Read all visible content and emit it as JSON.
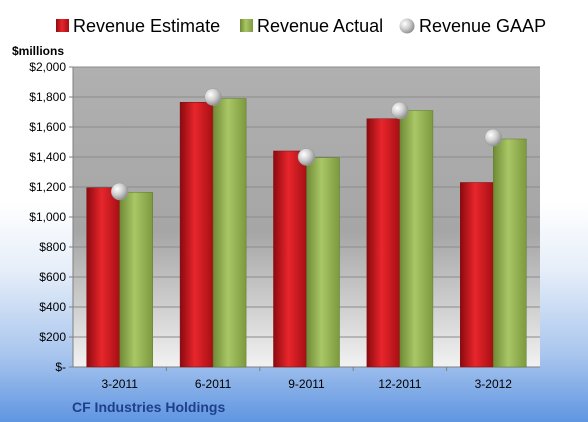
{
  "chart_data": {
    "type": "bar",
    "title": "",
    "unit_label": "$millions",
    "footer_label": "CF Industries Holdings",
    "categories": [
      "3-2011",
      "6-2011",
      "9-2011",
      "12-2011",
      "3-2012"
    ],
    "series": [
      {
        "name": "Revenue Estimate",
        "kind": "bar",
        "color": "#d7141a",
        "values": [
          1195,
          1765,
          1440,
          1655,
          1230
        ]
      },
      {
        "name": "Revenue Actual",
        "kind": "bar",
        "color": "#9bbb59",
        "values": [
          1165,
          1790,
          1395,
          1710,
          1520
        ]
      },
      {
        "name": "Revenue GAAP",
        "kind": "marker",
        "color": "#c0c0c0",
        "values": [
          1170,
          1800,
          1400,
          1710,
          1530
        ]
      }
    ],
    "ylim": [
      0,
      2000
    ],
    "ytick_values": [
      0,
      200,
      400,
      600,
      800,
      1000,
      1200,
      1400,
      1600,
      1800,
      2000
    ],
    "ytick_labels": [
      "$-",
      "$200",
      "$400",
      "$600",
      "$800",
      "$1,000",
      "$1,200",
      "$1,400",
      "$1,600",
      "$1,800",
      "$2,000"
    ],
    "grid": true,
    "legend_position": "top"
  }
}
